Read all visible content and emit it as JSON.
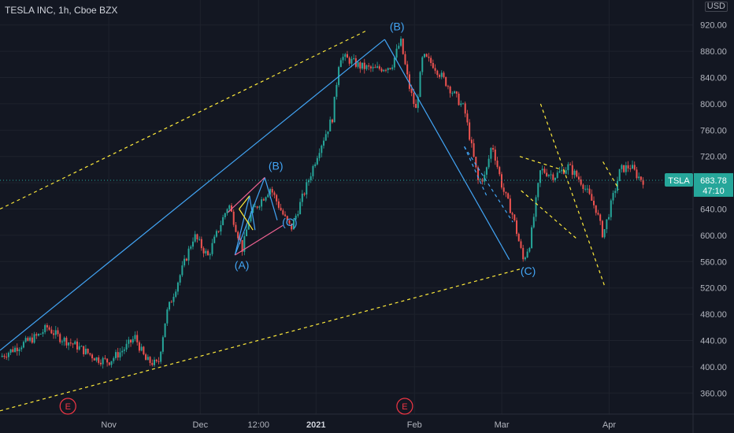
{
  "header": {
    "title": "TESLA INC, 1h, Cboe BZX"
  },
  "currency": {
    "line1": "",
    "line2": "USD"
  },
  "price_label": {
    "symbol": "TSLA",
    "price": "683.78",
    "countdown": "47:10"
  },
  "colors": {
    "background": "#131722",
    "grid": "#1e222d",
    "axis_text": "#b2b5be",
    "candle_up": "#26a69a",
    "candle_down": "#ef5350",
    "trend": "#ffeb3b",
    "wave": "#42a5f5",
    "pink": "#f06292",
    "badge": "#f23645",
    "price": "#26a69a"
  },
  "chart_data": {
    "type": "candlestick",
    "title": "TESLA INC, 1h, Cboe BZX",
    "y_axis": {
      "ticks": [
        360,
        400,
        440,
        480,
        520,
        560,
        600,
        640,
        680,
        720,
        760,
        800,
        840,
        880,
        920
      ],
      "ylim": [
        328,
        958
      ],
      "position": "right"
    },
    "x_axis": {
      "ticks": [
        {
          "label": "Nov",
          "x": 0.157
        },
        {
          "label": "Dec",
          "x": 0.289
        },
        {
          "label": "12:00",
          "x": 0.373
        },
        {
          "label": "2021",
          "x": 0.456
        },
        {
          "label": "Feb",
          "x": 0.598
        },
        {
          "label": "Mar",
          "x": 0.724
        },
        {
          "label": "Apr",
          "x": 0.879
        }
      ]
    },
    "last_price": 683.78,
    "price_path": [
      [
        0.0,
        415
      ],
      [
        0.028,
        432
      ],
      [
        0.056,
        448
      ],
      [
        0.068,
        460
      ],
      [
        0.085,
        445
      ],
      [
        0.11,
        432
      ],
      [
        0.14,
        412
      ],
      [
        0.157,
        408
      ],
      [
        0.18,
        428
      ],
      [
        0.195,
        445
      ],
      [
        0.21,
        410
      ],
      [
        0.228,
        403
      ],
      [
        0.24,
        480
      ],
      [
        0.26,
        540
      ],
      [
        0.28,
        600
      ],
      [
        0.3,
        568
      ],
      [
        0.33,
        648
      ],
      [
        0.35,
        578
      ],
      [
        0.36,
        630
      ],
      [
        0.39,
        672
      ],
      [
        0.41,
        628
      ],
      [
        0.42,
        610
      ],
      [
        0.44,
        668
      ],
      [
        0.46,
        730
      ],
      [
        0.48,
        780
      ],
      [
        0.49,
        873
      ],
      [
        0.505,
        866
      ],
      [
        0.52,
        857
      ],
      [
        0.54,
        852
      ],
      [
        0.565,
        858
      ],
      [
        0.578,
        896
      ],
      [
        0.59,
        828
      ],
      [
        0.6,
        790
      ],
      [
        0.61,
        872
      ],
      [
        0.625,
        860
      ],
      [
        0.645,
        830
      ],
      [
        0.67,
        792
      ],
      [
        0.69,
        682
      ],
      [
        0.7,
        690
      ],
      [
        0.71,
        740
      ],
      [
        0.725,
        672
      ],
      [
        0.74,
        630
      ],
      [
        0.755,
        562
      ],
      [
        0.765,
        590
      ],
      [
        0.78,
        700
      ],
      [
        0.8,
        690
      ],
      [
        0.82,
        705
      ],
      [
        0.84,
        680
      ],
      [
        0.86,
        640
      ],
      [
        0.87,
        600
      ],
      [
        0.88,
        640
      ],
      [
        0.895,
        700
      ],
      [
        0.91,
        705
      ],
      [
        0.92,
        690
      ],
      [
        0.928,
        683.78
      ]
    ],
    "annotations": [
      {
        "text": "(B)",
        "x": 0.573,
        "y": 912
      },
      {
        "text": "(B)",
        "x": 0.398,
        "y": 700
      },
      {
        "text": "(A)",
        "x": 0.349,
        "y": 549
      },
      {
        "text": "(C)",
        "x": 0.418,
        "y": 614
      },
      {
        "text": "(C)",
        "x": 0.762,
        "y": 540
      }
    ],
    "badges": [
      {
        "text": "E",
        "x": 0.098
      },
      {
        "text": "E",
        "x": 0.584
      }
    ]
  }
}
